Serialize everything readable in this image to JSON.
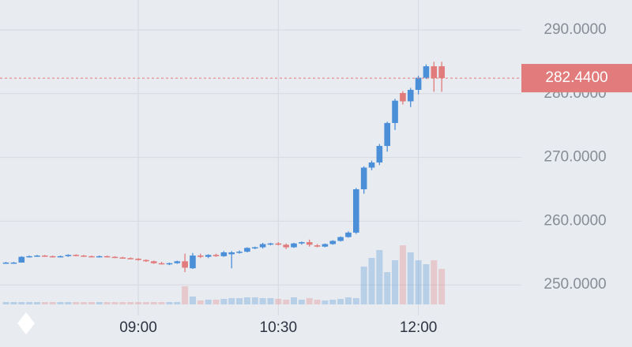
{
  "chart_data": {
    "type": "candlestick",
    "categories": [
      null,
      null,
      null,
      null,
      null,
      null,
      null,
      null,
      null,
      null,
      null,
      null,
      null,
      null,
      null,
      null,
      null,
      "09:00",
      null,
      null,
      null,
      null,
      null,
      null,
      null,
      null,
      null,
      null,
      null,
      null,
      null,
      null,
      null,
      null,
      null,
      "10:30",
      null,
      null,
      null,
      null,
      null,
      null,
      null,
      null,
      null,
      null,
      null,
      null,
      null,
      null,
      null,
      null,
      null,
      "12:00",
      null,
      null,
      null
    ],
    "open": [
      253.4,
      253.5,
      253.5,
      254.4,
      254.5,
      254.6,
      254.5,
      254.4,
      254.5,
      254.7,
      254.6,
      254.5,
      254.4,
      254.5,
      254.4,
      254.3,
      254.2,
      254.1,
      253.9,
      253.7,
      253.4,
      253.3,
      253.4,
      253.7,
      252.6,
      254.6,
      254.4,
      254.7,
      254.5,
      254.8,
      255.1,
      255.2,
      255.8,
      255.9,
      256.4,
      256.5,
      256.3,
      255.9,
      256.5,
      256.7,
      256.2,
      256.0,
      256.4,
      256.9,
      257.5,
      258.2,
      265.0,
      268.4,
      269.2,
      271.8,
      275.4,
      280.1,
      278.8,
      280.6,
      282.5,
      284.3,
      284.3
    ],
    "high": [
      253.6,
      253.6,
      254.5,
      254.6,
      254.7,
      254.7,
      254.6,
      254.6,
      254.8,
      254.8,
      254.7,
      254.6,
      254.6,
      254.6,
      254.5,
      254.4,
      254.3,
      254.2,
      254.0,
      253.8,
      253.6,
      253.5,
      253.8,
      254.9,
      255.0,
      254.9,
      254.8,
      254.9,
      255.3,
      255.3,
      255.4,
      255.9,
      256.0,
      256.6,
      256.6,
      256.7,
      256.5,
      256.6,
      256.8,
      257.1,
      256.4,
      256.5,
      257.0,
      257.6,
      258.4,
      265.2,
      268.6,
      269.5,
      272.1,
      275.6,
      279.2,
      280.4,
      280.9,
      282.8,
      284.6,
      285.0,
      285.0
    ],
    "low": [
      253.3,
      253.4,
      253.5,
      254.3,
      254.4,
      254.4,
      254.3,
      254.3,
      254.4,
      254.5,
      254.4,
      254.3,
      254.3,
      254.3,
      254.2,
      254.1,
      254.0,
      253.8,
      253.6,
      253.3,
      253.2,
      253.1,
      253.3,
      252.0,
      252.5,
      254.2,
      254.2,
      254.4,
      254.4,
      252.6,
      254.9,
      255.1,
      255.6,
      255.7,
      256.2,
      256.2,
      255.6,
      255.8,
      256.3,
      256.0,
      255.9,
      255.9,
      256.3,
      256.8,
      257.4,
      258.0,
      264.3,
      268.0,
      268.8,
      270.9,
      274.3,
      278.3,
      277.9,
      279.9,
      282.3,
      280.3,
      280.3
    ],
    "close": [
      253.5,
      253.5,
      254.4,
      254.5,
      254.6,
      254.5,
      254.4,
      254.5,
      254.7,
      254.6,
      254.5,
      254.4,
      254.5,
      254.4,
      254.3,
      254.2,
      254.1,
      253.9,
      253.7,
      253.4,
      253.3,
      253.4,
      253.7,
      252.7,
      254.6,
      254.4,
      254.7,
      254.5,
      255.1,
      255.1,
      255.2,
      255.8,
      255.9,
      256.4,
      256.5,
      256.3,
      255.9,
      256.5,
      256.7,
      256.3,
      256.0,
      256.4,
      256.9,
      257.5,
      258.2,
      265.0,
      268.4,
      269.2,
      271.8,
      275.4,
      278.9,
      278.8,
      280.6,
      282.5,
      284.3,
      282.44,
      282.44
    ],
    "volume": [
      3,
      3,
      3,
      3,
      3,
      3,
      3,
      3,
      3,
      3,
      3,
      3,
      3,
      3,
      3,
      3,
      3,
      3,
      3,
      3,
      3,
      3,
      3,
      23,
      10,
      5,
      6,
      6,
      7,
      8,
      8,
      9,
      9,
      8,
      8,
      7,
      6,
      9,
      6,
      8,
      6,
      5,
      6,
      7,
      9,
      8,
      48,
      59,
      69,
      41,
      56,
      75,
      66,
      56,
      51,
      56,
      45
    ],
    "up_color": "#4a8fd8",
    "down_color": "#e27b7b",
    "ylim": [
      245.2,
      294.7
    ],
    "yticks": [
      {
        "value": 250,
        "label": "250.0000"
      },
      {
        "value": 260,
        "label": "260.0000"
      },
      {
        "value": 270,
        "label": "270.0000"
      },
      {
        "value": 280,
        "label": "280.0000"
      },
      {
        "value": 290,
        "label": "290.0000"
      }
    ],
    "grid": true,
    "last_price": {
      "value": 282.44,
      "label": "282.4400"
    }
  }
}
